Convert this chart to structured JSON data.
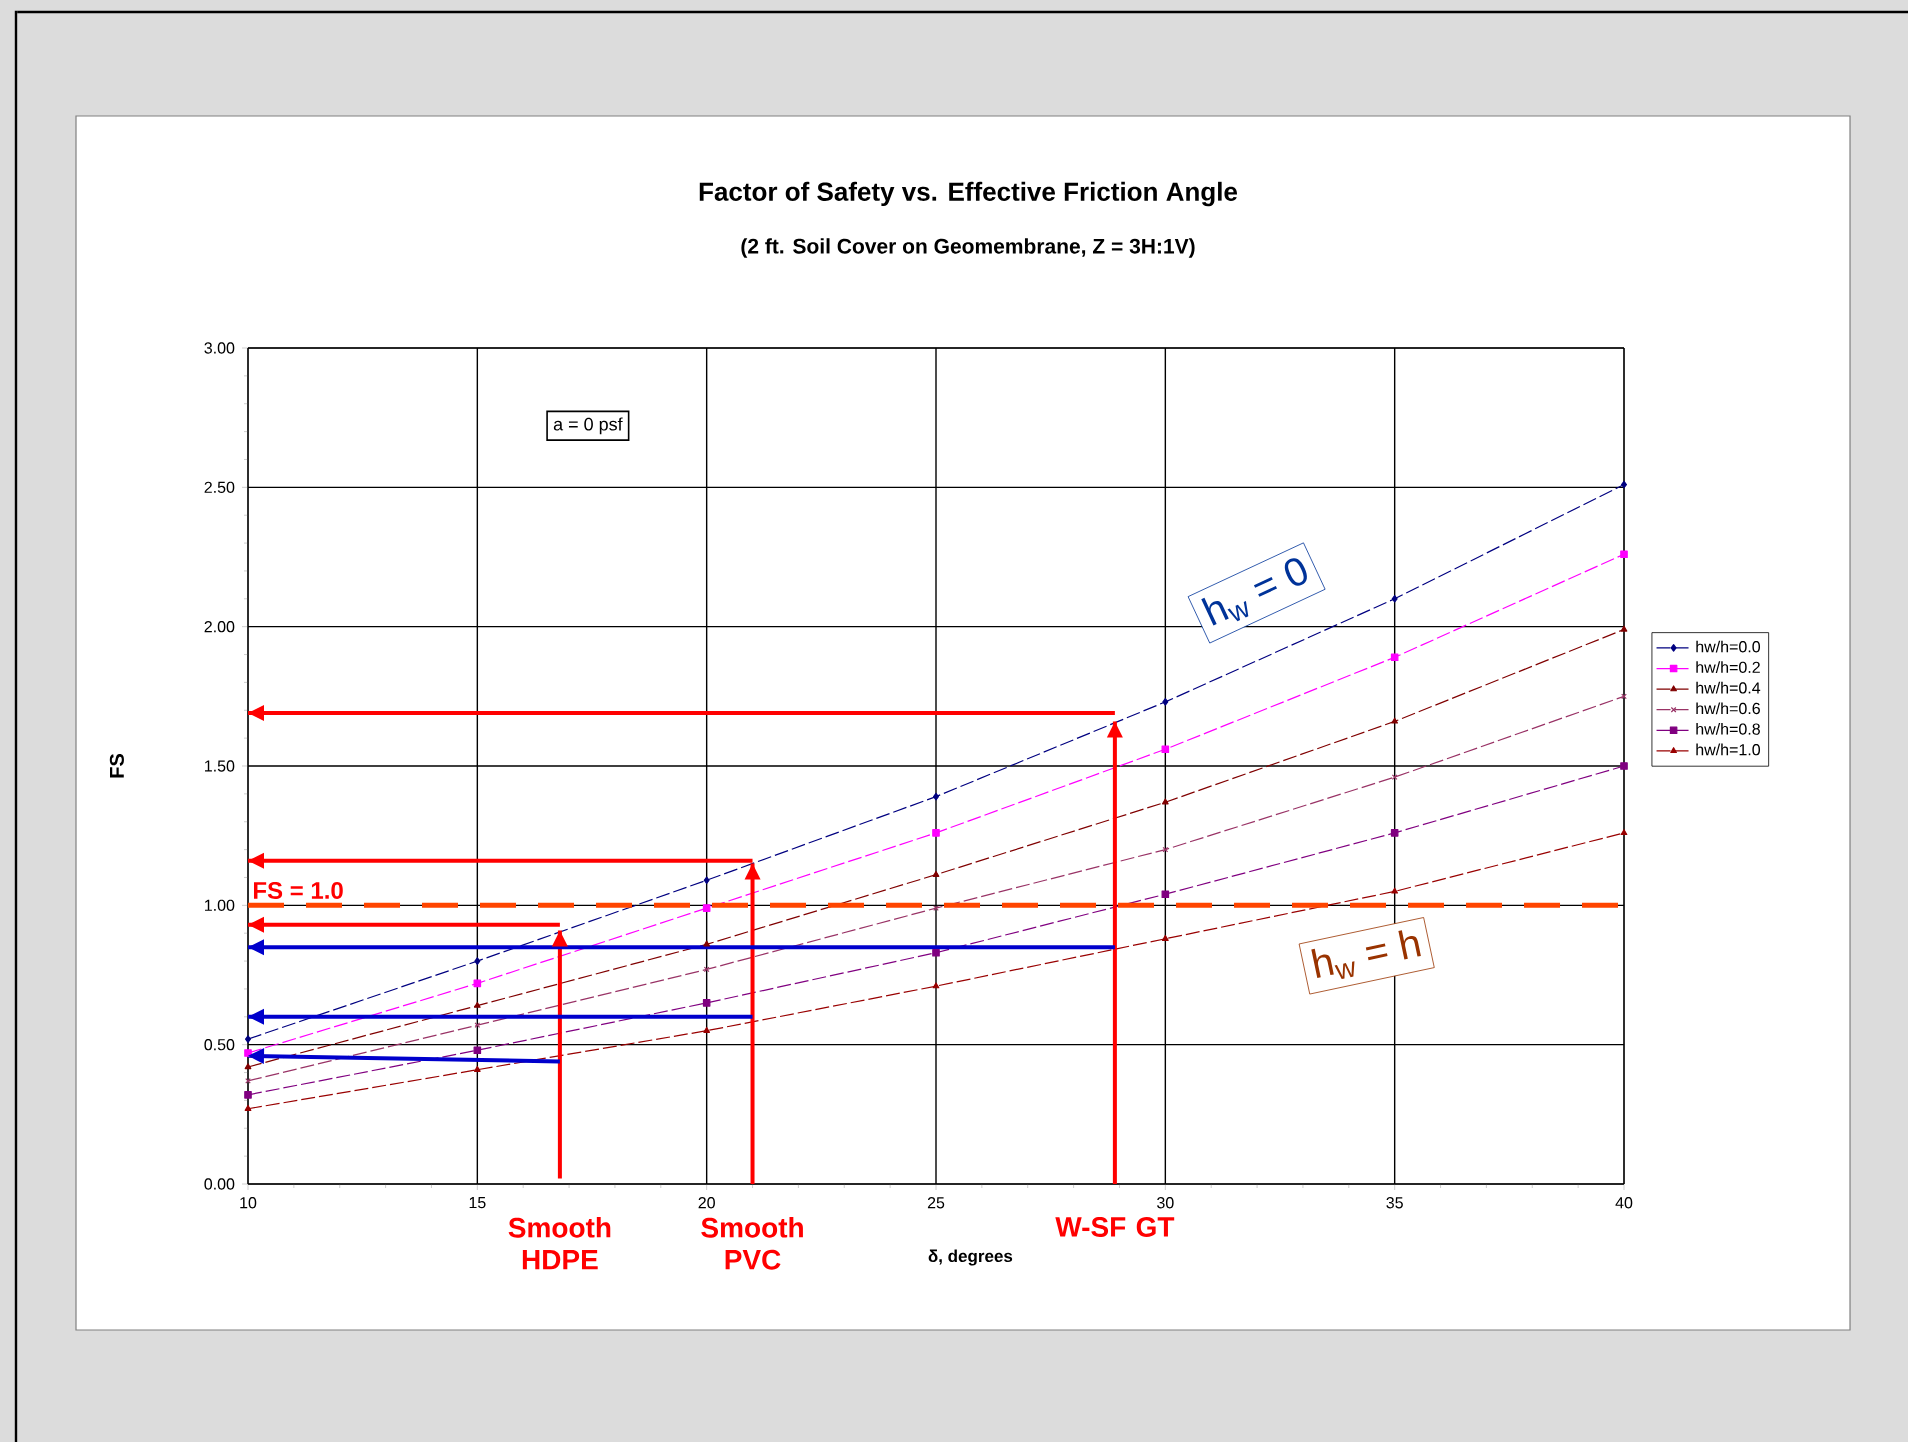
{
  "chart_data": {
    "type": "line",
    "title": "Factor of Safety vs. Effective Friction Angle",
    "subtitle": "(2 ft. Soil Cover on Geomembrane, Z = 3H:1V)",
    "xlabel": "δ, degrees",
    "ylabel": "FS",
    "xlim": [
      10,
      40
    ],
    "xticks": [
      10,
      15,
      20,
      25,
      30,
      35,
      40
    ],
    "ylim": [
      0,
      3
    ],
    "yticks": [
      {
        "value": 0,
        "label": "0.00"
      },
      {
        "value": 0.5,
        "label": "0.50"
      },
      {
        "value": 1,
        "label": "1.00"
      },
      {
        "value": 1.5,
        "label": "1.50"
      },
      {
        "value": 2,
        "label": "2.00"
      },
      {
        "value": 2.5,
        "label": "2.50"
      },
      {
        "value": 3,
        "label": "3.00"
      }
    ],
    "grid": true,
    "legend": "right",
    "line_style": "dashed",
    "series": [
      {
        "name": "hw/h=0.0",
        "color": "#000080",
        "marker": "diamond",
        "x": [
          10,
          15,
          20,
          25,
          30,
          35,
          40
        ],
        "values": [
          0.52,
          0.8,
          1.09,
          1.39,
          1.73,
          2.1,
          2.51
        ]
      },
      {
        "name": "hw/h=0.2",
        "color": "#ff00ff",
        "marker": "square",
        "x": [
          10,
          15,
          20,
          25,
          30,
          35,
          40
        ],
        "values": [
          0.47,
          0.72,
          0.99,
          1.26,
          1.56,
          1.89,
          2.26
        ]
      },
      {
        "name": "hw/h=0.4",
        "color": "#800000",
        "marker": "triangle",
        "x": [
          10,
          15,
          20,
          25,
          30,
          35,
          40
        ],
        "values": [
          0.42,
          0.64,
          0.86,
          1.11,
          1.37,
          1.66,
          1.99
        ]
      },
      {
        "name": "hw/h=0.6",
        "color": "#993366",
        "marker": "cross",
        "x": [
          10,
          15,
          20,
          25,
          30,
          35,
          40
        ],
        "values": [
          0.37,
          0.57,
          0.77,
          0.99,
          1.2,
          1.46,
          1.75
        ]
      },
      {
        "name": "hw/h=0.8",
        "color": "#800080",
        "marker": "square",
        "x": [
          10,
          15,
          20,
          25,
          30,
          35,
          40
        ],
        "values": [
          0.32,
          0.48,
          0.65,
          0.83,
          1.04,
          1.26,
          1.5
        ]
      },
      {
        "name": "hw/h=1.0",
        "color": "#990000",
        "marker": "triangle",
        "x": [
          10,
          15,
          20,
          25,
          30,
          35,
          40
        ],
        "values": [
          0.27,
          0.41,
          0.55,
          0.71,
          0.88,
          1.05,
          1.26
        ]
      },
      {
        "color": "#ff0000",
        "marker": "none",
        "line_style": "solid",
        "x": [
          16.8,
          16.8
        ],
        "values": [
          0.02,
          0.91
        ]
      },
      {
        "color": "#ff0000",
        "marker": "none",
        "line_style": "solid",
        "x": [
          16.8,
          10
        ],
        "values": [
          0.93,
          0.93
        ]
      },
      {
        "color": "#ff0000",
        "marker": "none",
        "line_style": "solid",
        "x": [
          21.0,
          21.0
        ],
        "values": [
          0,
          1.15
        ]
      },
      {
        "color": "#ff0000",
        "marker": "none",
        "line_style": "solid",
        "x": [
          21.0,
          10
        ],
        "values": [
          1.16,
          1.16
        ]
      },
      {
        "color": "#ff0000",
        "marker": "none",
        "line_style": "solid",
        "x": [
          28.9,
          28.9
        ],
        "values": [
          0,
          1.66
        ]
      },
      {
        "color": "#ff0000",
        "marker": "none",
        "line_style": "solid",
        "x": [
          28.9,
          10
        ],
        "values": [
          1.69,
          1.69
        ]
      },
      {
        "color": "#0000cc",
        "marker": "none",
        "line_style": "solid",
        "x": [
          16.8,
          10
        ],
        "values": [
          0.44,
          0.46
        ]
      },
      {
        "color": "#0000cc",
        "marker": "none",
        "line_style": "solid",
        "x": [
          21.0,
          10
        ],
        "values": [
          0.6,
          0.6
        ]
      },
      {
        "color": "#0000cc",
        "marker": "none",
        "line_style": "solid",
        "x": [
          28.9,
          10
        ],
        "values": [
          0.85,
          0.85
        ]
      }
    ],
    "ref_lines": [
      {
        "axis": "y",
        "value": 1.0,
        "label": "FS = 1.0",
        "color": "#ff4500",
        "line_style": "dashed"
      }
    ],
    "annotations": [
      {
        "text": "Smooth HDPE",
        "x": 16.8,
        "y": 0
      },
      {
        "text": "Smooth PVC",
        "x": 21.0,
        "y": 0
      },
      {
        "text": "W-SF GT",
        "x": 28.9,
        "y": 0
      },
      "a = 0 psf",
      "h$_{w}$ = 0",
      "h$_{w}$ = h"
    ]
  }
}
